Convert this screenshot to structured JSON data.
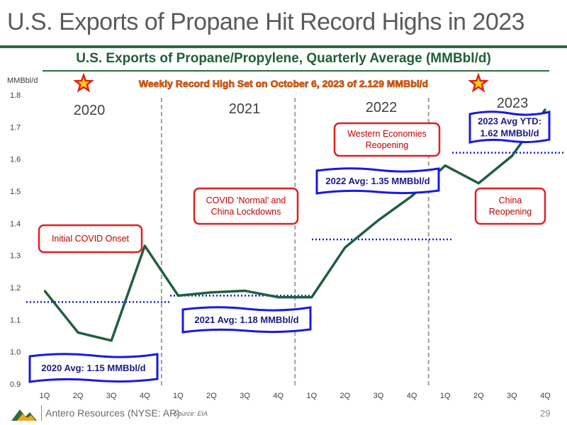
{
  "slide": {
    "title": "U.S. Exports of Propane Hit Record Highs in 2023",
    "page_number": "29",
    "footer_company": "Antero Resources (NYSE: AR)",
    "footer_source": "Source: EIA",
    "accent_color": "#2e6b3d"
  },
  "chart_data": {
    "type": "line",
    "title": "U.S. Exports of Propane/Propylene, Quarterly Average (MMBbl/d)",
    "ylabel": "MMBbl/d",
    "ylim": [
      0.9,
      1.8
    ],
    "yticks": [
      "0.9",
      "1.0",
      "1.1",
      "1.2",
      "1.3",
      "1.4",
      "1.5",
      "1.6",
      "1.7",
      "1.8"
    ],
    "categories": [
      "1Q",
      "2Q",
      "3Q",
      "4Q",
      "1Q",
      "2Q",
      "3Q",
      "4Q",
      "1Q",
      "2Q",
      "3Q",
      "4Q",
      "1Q",
      "2Q",
      "3Q",
      "4Q"
    ],
    "year_labels": [
      "2020",
      "2021",
      "2022",
      "2023"
    ],
    "series": [
      {
        "color": "#1f5f3f",
        "values": [
          1.19,
          1.06,
          1.035,
          1.33,
          1.175,
          1.185,
          1.19,
          1.17,
          1.17,
          1.325,
          1.41,
          1.485,
          1.58,
          1.525,
          1.61,
          1.755
        ]
      }
    ],
    "averages": [
      {
        "label": "2020 Avg: 1.15 MMBbl/d",
        "value": 1.155
      },
      {
        "label": "2021 Avg: 1.18 MMBbl/d",
        "value": 1.175
      },
      {
        "label": "2022 Avg: 1.35 MMBbl/d",
        "value": 1.35
      },
      {
        "label": "2023 Avg YTD:\n1.62 MMBbl/d",
        "value": 1.62
      }
    ],
    "annotations": [
      "Initial COVID Onset",
      "COVID ‘Normal’ and\nChina Lockdowns",
      "Western Economies\nReopening",
      "China\nReopening"
    ],
    "record_banner": "Weekly Record High Set on October 6, 2023 of 2.129 MMBbl/d",
    "grid": false,
    "colors": {
      "line": "#1f5f3f",
      "average_line": "#1a1adf",
      "average_box": "#1a1adf",
      "annotation_box": "#e02020",
      "banner_text": "#ff6a00",
      "star_fill": "#ffd200",
      "star_stroke": "#e02020",
      "divider": "#a0a0a0"
    }
  }
}
